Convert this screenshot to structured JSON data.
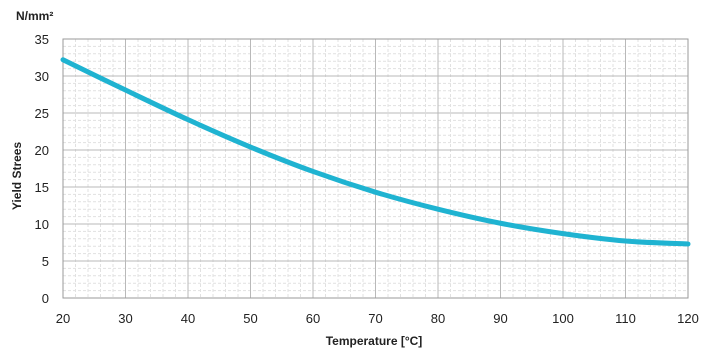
{
  "chart_data": {
    "type": "line",
    "title": "",
    "xlabel": "Temperature [°C]",
    "ylabel": "Yield Strees",
    "yunit": "N/mm²",
    "xlim": [
      20,
      120
    ],
    "ylim": [
      0,
      35
    ],
    "xticks": [
      20,
      30,
      40,
      50,
      60,
      70,
      80,
      90,
      100,
      110,
      120
    ],
    "yticks": [
      0,
      5,
      10,
      15,
      20,
      25,
      30,
      35
    ],
    "grid": true,
    "legend": "none",
    "series": [
      {
        "color": "#1fb3d1",
        "x": [
          20,
          30,
          40,
          50,
          60,
          70,
          80,
          90,
          100,
          110,
          120
        ],
        "y": [
          32.2,
          28.1,
          24.1,
          20.4,
          17.1,
          14.3,
          12.0,
          10.1,
          8.7,
          7.7,
          7.3
        ]
      }
    ]
  }
}
